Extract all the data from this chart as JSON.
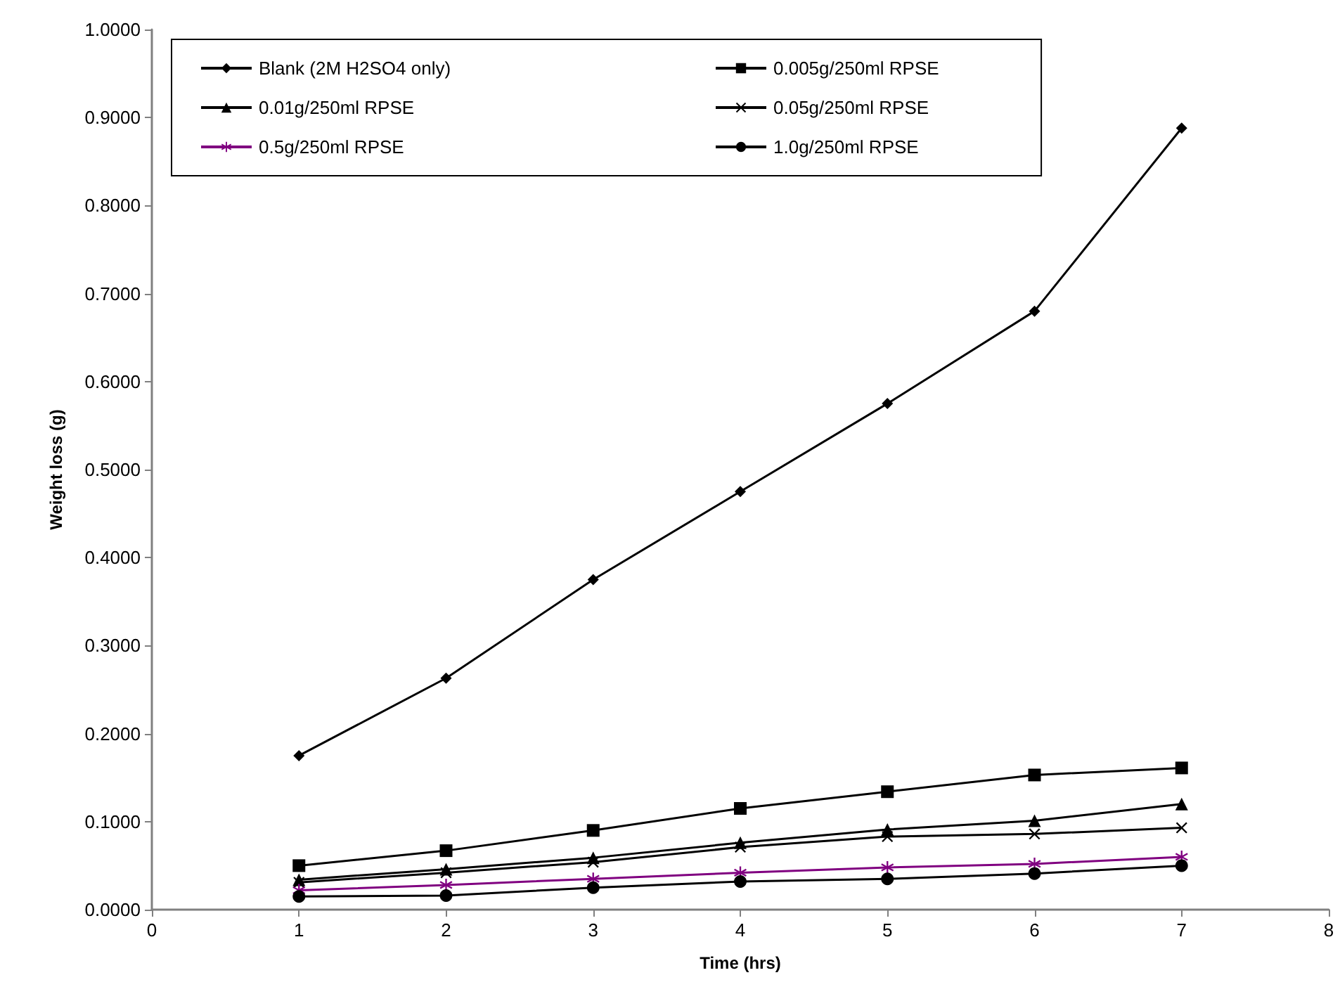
{
  "chart_data": {
    "type": "line",
    "xlabel": "Time (hrs)",
    "ylabel": "Weight loss (g)",
    "x": [
      1,
      2,
      3,
      4,
      5,
      6,
      7
    ],
    "series": [
      {
        "name": "Blank (2M H2SO4 only)",
        "color": "#000000",
        "marker": "diamond",
        "values": [
          0.175,
          0.263,
          0.375,
          0.475,
          0.575,
          0.68,
          0.888
        ]
      },
      {
        "name": "0.005g/250ml RPSE",
        "color": "#000000",
        "marker": "square",
        "values": [
          0.05,
          0.067,
          0.09,
          0.115,
          0.134,
          0.153,
          0.161
        ]
      },
      {
        "name": "0.01g/250ml RPSE",
        "color": "#000000",
        "marker": "triangle",
        "values": [
          0.034,
          0.046,
          0.059,
          0.076,
          0.091,
          0.101,
          0.12
        ]
      },
      {
        "name": "0.05g/250ml RPSE",
        "color": "#000000",
        "marker": "cross",
        "values": [
          0.031,
          0.042,
          0.054,
          0.071,
          0.083,
          0.086,
          0.093
        ]
      },
      {
        "name": "0.5g/250ml RPSE",
        "color": "#800080",
        "marker": "star",
        "values": [
          0.022,
          0.028,
          0.035,
          0.042,
          0.048,
          0.052,
          0.06
        ]
      },
      {
        "name": "1.0g/250ml RPSE",
        "color": "#000000",
        "marker": "circle",
        "values": [
          0.015,
          0.016,
          0.025,
          0.032,
          0.035,
          0.041,
          0.05
        ]
      }
    ],
    "xlim": [
      0,
      8
    ],
    "xticks": [
      0,
      1,
      2,
      3,
      4,
      5,
      6,
      7,
      8
    ],
    "ylim": [
      0,
      1
    ],
    "yticks": [
      {
        "value": 0,
        "label": "0.0000"
      },
      {
        "value": 0.1,
        "label": "0.1000"
      },
      {
        "value": 0.2,
        "label": "0.2000"
      },
      {
        "value": 0.3,
        "label": "0.3000"
      },
      {
        "value": 0.4,
        "label": "0.4000"
      },
      {
        "value": 0.5,
        "label": "0.5000"
      },
      {
        "value": 0.6,
        "label": "0.6000"
      },
      {
        "value": 0.7,
        "label": "0.7000"
      },
      {
        "value": 0.8,
        "label": "0.8000"
      },
      {
        "value": 0.9,
        "label": "0.9000"
      },
      {
        "value": 1,
        "label": "1.0000"
      }
    ],
    "grid": false,
    "legend": "top left",
    "line_style": "solid"
  }
}
